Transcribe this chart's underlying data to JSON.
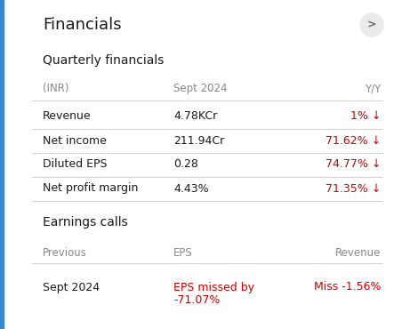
{
  "title": "Financials",
  "section1": "Quarterly financials",
  "section2": "Earnings calls",
  "header_row": [
    "(INR)",
    "Sept 2024",
    "Y/Y"
  ],
  "financials": [
    {
      "label": "Revenue",
      "value": "4.78KCr",
      "yy": "1% ↓",
      "yy_color": "#cc0000"
    },
    {
      "label": "Net income",
      "value": "211.94Cr",
      "yy": "71.62% ↓",
      "yy_color": "#cc0000"
    },
    {
      "label": "Diluted EPS",
      "value": "0.28",
      "yy": "74.77% ↓",
      "yy_color": "#cc0000"
    },
    {
      "label": "Net profit margin",
      "value": "4.43%",
      "yy": "71.35% ↓",
      "yy_color": "#cc0000"
    }
  ],
  "earnings_header": [
    "Previous",
    "EPS",
    "Revenue"
  ],
  "earnings_rows": [
    {
      "previous": "Sept 2024",
      "eps_line1": "EPS missed by",
      "eps_line2": "-71.07%",
      "eps_color": "#cc0000",
      "revenue": "Miss -1.56%",
      "revenue_color": "#cc0000"
    }
  ],
  "bg_color": "#ffffff",
  "text_dark": "#1a1a1a",
  "text_gray": "#888888",
  "text_red": "#cc0000",
  "divider_color": "#d0d0d0",
  "button_bg": "#ebebeb",
  "left_bar_color": "#3a86c8",
  "fig_width": 4.61,
  "fig_height": 3.7,
  "dpi": 100
}
